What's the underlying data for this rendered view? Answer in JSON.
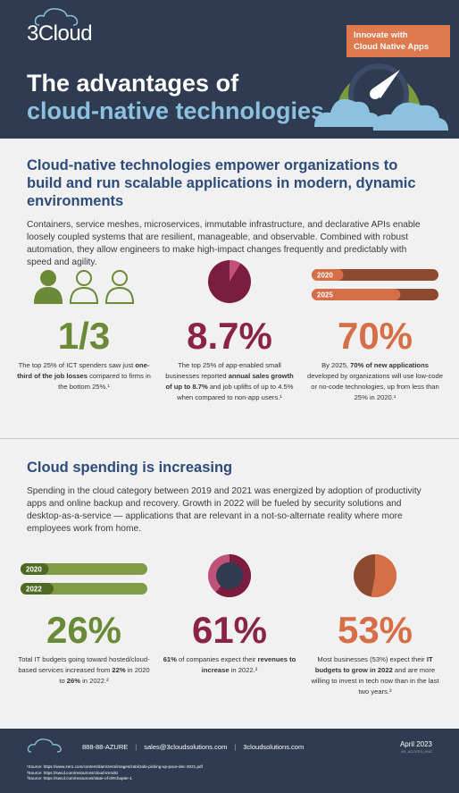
{
  "header": {
    "logo": "3Cloud",
    "badge": [
      "Innovate with",
      "Cloud Native Apps"
    ],
    "title": [
      "The advantages of",
      "cloud-native technologies"
    ]
  },
  "sections": [
    {
      "heading": "Cloud-native technologies empower organizations to build and run scalable applications in modern, dynamic environments",
      "body": "Containers, service meshes, microservices, immutable infrastructure, and declarative APIs enable loosely coupled systems that are resilient, manageable, and observable. Combined with robust automation, they allow engineers to make high-impact changes frequently and predictably with speed and agility.",
      "stats": [
        {
          "type": "people",
          "color": "#6b8a37",
          "value_label": "1/3",
          "text": [
            {
              "text": "The top 25% of ICT spenders saw just "
            },
            {
              "text": "one-third of the job losses",
              "bold": true
            },
            {
              "text": " compared to firms in the bottom 25%.¹"
            }
          ]
        },
        {
          "type": "pie",
          "color": "#8a2347",
          "value": 8.7,
          "value_label": "8.7%",
          "text": [
            {
              "text": "The top 25% of app-enabled small businesses reported "
            },
            {
              "text": "annual sales growth of up to 8.7%",
              "bold": true
            },
            {
              "text": " and job uplifts of up to 4.5% when compared to non-app users.¹"
            }
          ]
        },
        {
          "type": "bars",
          "color": "#d66e48",
          "value_label": "70%",
          "bars": [
            {
              "label": "2020",
              "value": 25
            },
            {
              "label": "2025",
              "value": 70
            }
          ],
          "text": [
            {
              "text": "By 2025, "
            },
            {
              "text": "70% of new applications",
              "bold": true
            },
            {
              "text": " developed by organizations will use low-code or no-code technologies, up from less than 25% in 2020.¹"
            }
          ]
        }
      ]
    },
    {
      "heading": "Cloud spending is increasing",
      "body": "Spending in the cloud category between 2019 and 2021 was energized by adoption of productivity apps and online backup and recovery. Growth in 2022 will be fueled by security solutions and desktop-as-a-service — applications that are relevant in a not-so-alternate reality where more employees work from home.",
      "stats": [
        {
          "type": "bars",
          "color": "#6b8a37",
          "value_label": "26%",
          "bars": [
            {
              "label": "2020",
              "value": 22
            },
            {
              "label": "2022",
              "value": 26
            }
          ],
          "text": [
            {
              "text": "Total IT budgets going toward hosted/cloud-based services increased from "
            },
            {
              "text": "22%",
              "bold": true
            },
            {
              "text": " in 2020 to "
            },
            {
              "text": "26%",
              "bold": true
            },
            {
              "text": " in 2022.²"
            }
          ]
        },
        {
          "type": "donut",
          "color": "#8a2347",
          "value": 61,
          "value_label": "61%",
          "text": [
            {
              "text": "61%",
              "bold": true
            },
            {
              "text": " of companies expect their "
            },
            {
              "text": "revenues to increase",
              "bold": true
            },
            {
              "text": " in 2022.²"
            }
          ]
        },
        {
          "type": "pie",
          "color": "#d66e48",
          "value": 53,
          "value_label": "53%",
          "text": [
            {
              "text": "Most businesses (53%) expect their "
            },
            {
              "text": "IT budgets to grow in 2022",
              "bold": true
            },
            {
              "text": " and are more willing to invest in tech now than in the last two years.³"
            }
          ]
        }
      ]
    }
  ],
  "footer": {
    "contacts": [
      "888-88-AZURE",
      "sales@3cloudsolutions.com",
      "3cloudsolutions.com"
    ],
    "date": "April 2023",
    "code": "AR_ACCESS_NNC",
    "sources": [
      "¹Source: https://www.zero.com/content/dam/zero/images/zabi/zabi-picking-up-pace-dec-2021.pdf",
      "²Source: https://swcd.com/resources/cloud-trends/",
      "³Source: https://swcd.com/resources/state-of-it/#chapter-1"
    ]
  }
}
